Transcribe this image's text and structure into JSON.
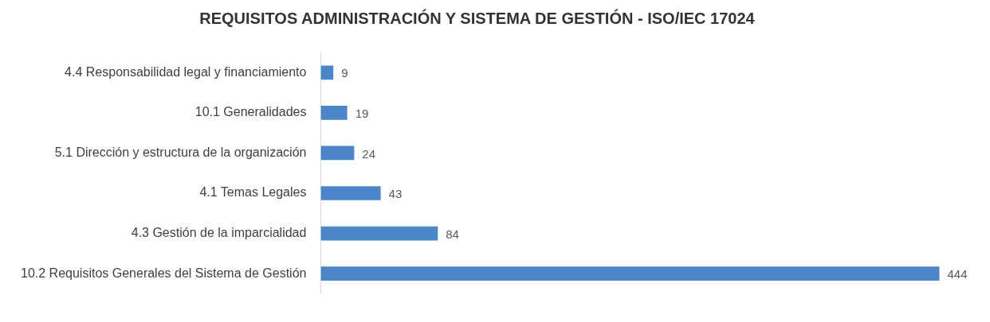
{
  "chart_data": {
    "type": "bar",
    "orientation": "horizontal",
    "title": "REQUISITOS ADMINISTRACIÓN Y SISTEMA DE GESTIÓN - ISO/IEC 17024",
    "categories": [
      "4.4 Responsabilidad legal y financiamiento",
      "10.1 Generalidades",
      "5.1 Dirección y estructura de la organización",
      "4.1 Temas Legales",
      "4.3 Gestión de la imparcialidad",
      "10.2 Requisitos Generales del Sistema de Gestión"
    ],
    "values": [
      9,
      19,
      24,
      43,
      84,
      444
    ],
    "color": "#4a86c8",
    "data_labels": true,
    "tick_labels": "y",
    "grid": false
  }
}
